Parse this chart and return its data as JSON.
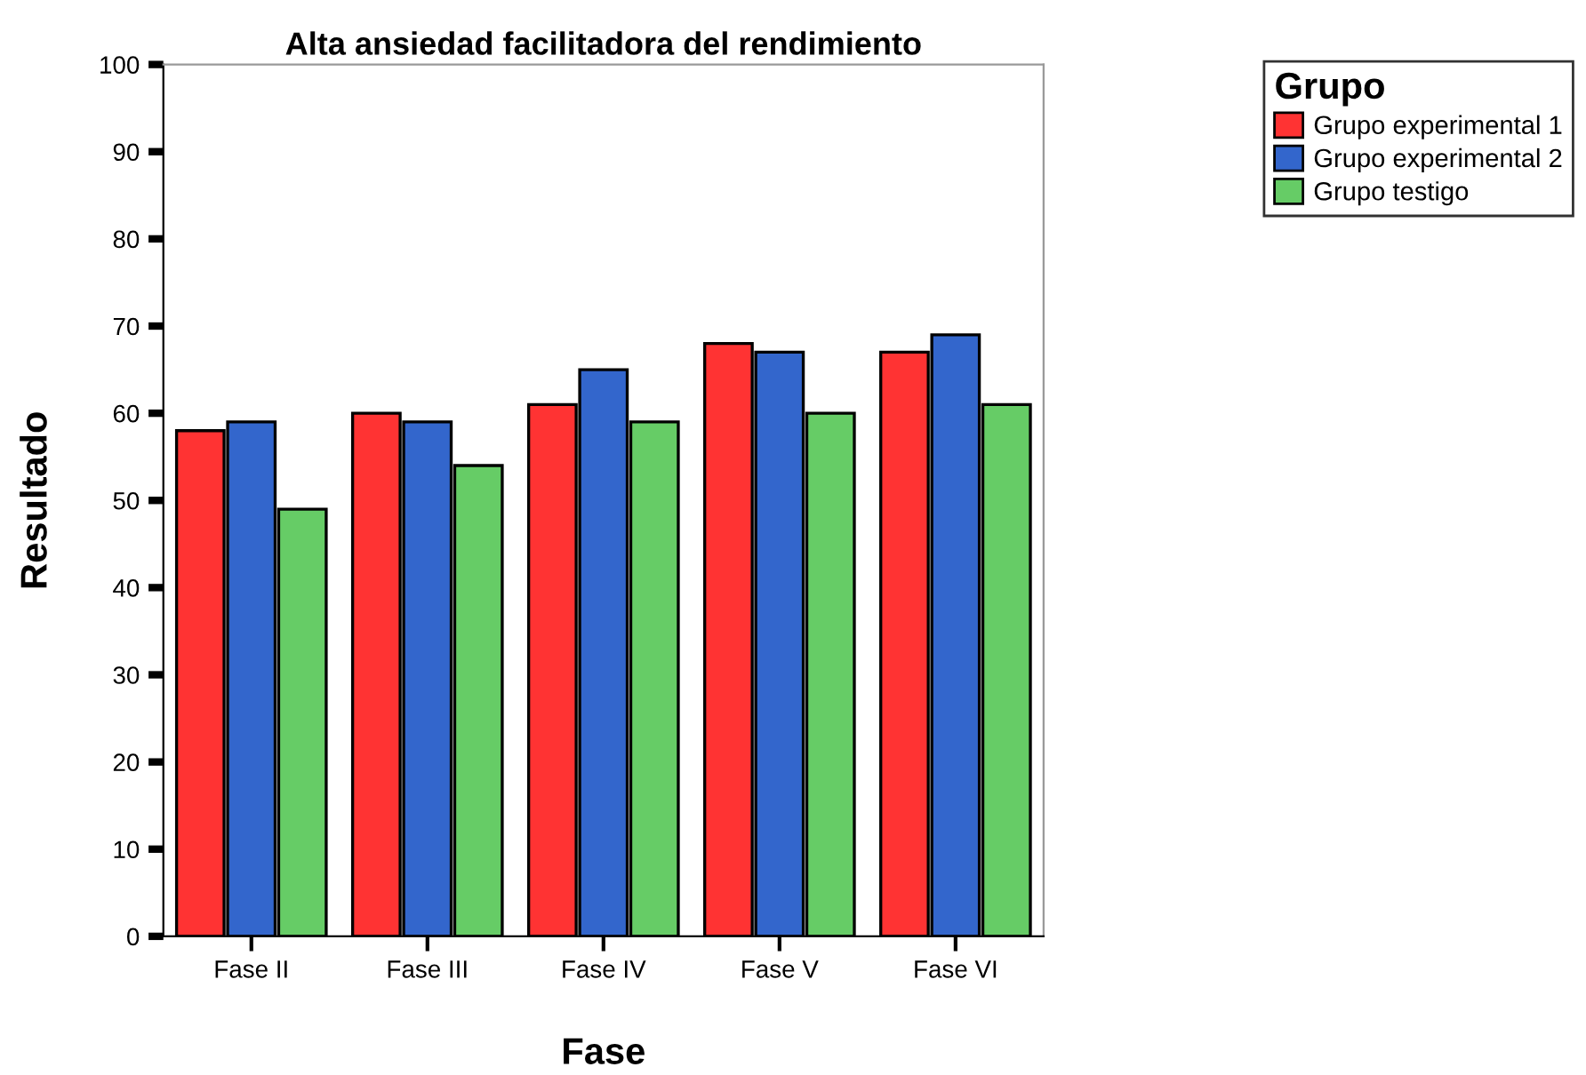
{
  "chart_data": {
    "type": "bar",
    "title": "Alta ansiedad facilitadora del rendimiento",
    "xlabel": "Fase",
    "ylabel": "Resultado",
    "legend_title": "Grupo",
    "categories": [
      "Fase II",
      "Fase III",
      "Fase IV",
      "Fase V",
      "Fase VI"
    ],
    "series": [
      {
        "name": "Grupo experimental 1",
        "color": "#ff3333",
        "values": [
          58,
          60,
          61,
          68,
          67
        ]
      },
      {
        "name": "Grupo experimental 2",
        "color": "#3366cc",
        "values": [
          59,
          59,
          65,
          67,
          69
        ]
      },
      {
        "name": "Grupo testigo",
        "color": "#66cc66",
        "values": [
          49,
          54,
          59,
          60,
          61
        ]
      }
    ],
    "ylim": [
      0,
      100
    ],
    "yticks": [
      0,
      10,
      20,
      30,
      40,
      50,
      60,
      70,
      80,
      90,
      100
    ],
    "grid": false,
    "legend": "top right"
  }
}
